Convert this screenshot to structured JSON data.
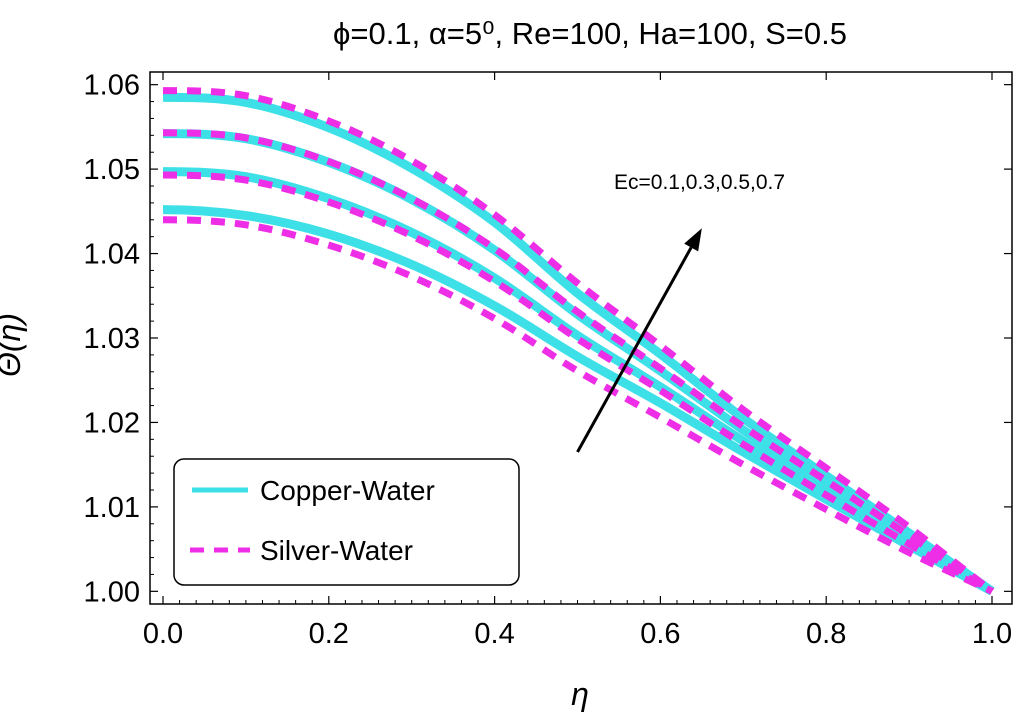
{
  "chart_data": {
    "type": "line",
    "title": "ϕ=0.1, α=5⁰, Re=100, Ha=100, S=0.5",
    "xlabel": "η",
    "ylabel": "Θ(η)",
    "xlim": [
      0.0,
      1.0
    ],
    "ylim": [
      0.9985,
      1.0615
    ],
    "xticks": [
      "0.0",
      "0.2",
      "0.4",
      "0.6",
      "0.8",
      "1.0"
    ],
    "xtick_values": [
      0.0,
      0.2,
      0.4,
      0.6,
      0.8,
      1.0
    ],
    "yticks": [
      "1.00",
      "1.01",
      "1.02",
      "1.03",
      "1.04",
      "1.05",
      "1.06"
    ],
    "ytick_values": [
      1.0,
      1.01,
      1.02,
      1.03,
      1.04,
      1.05,
      1.06
    ],
    "grid": false,
    "legend_position": "bottom-left",
    "legend": [
      {
        "label": "Copper-Water",
        "color": "#3ee0e8",
        "style": "solid"
      },
      {
        "label": "Silver-Water",
        "color": "#ee2ee6",
        "style": "dashed"
      }
    ],
    "annotation": {
      "text": "Ec=0.1,0.3,0.5,0.7",
      "arrow_from": [
        0.5,
        1.0165
      ],
      "arrow_to": [
        0.65,
        1.043
      ]
    },
    "x": [
      0.0,
      0.1,
      0.2,
      0.3,
      0.4,
      0.5,
      0.6,
      0.7,
      0.8,
      0.9,
      1.0
    ],
    "series": [
      {
        "name": "Copper-Water Ec=0.1",
        "group": "Copper-Water",
        "Ec": 0.1,
        "values": [
          1.0452,
          1.0445,
          1.0423,
          1.0387,
          1.0338,
          1.0278,
          1.0223,
          1.0165,
          1.0109,
          1.0054,
          1.0
        ]
      },
      {
        "name": "Copper-Water Ec=0.3",
        "group": "Copper-Water",
        "Ec": 0.3,
        "values": [
          1.0497,
          1.0491,
          1.0465,
          1.0425,
          1.0371,
          1.0303,
          1.0242,
          1.0178,
          1.0118,
          1.0059,
          1.0
        ]
      },
      {
        "name": "Copper-Water Ec=0.5",
        "group": "Copper-Water",
        "Ec": 0.5,
        "values": [
          1.0542,
          1.0536,
          1.0508,
          1.0464,
          1.0404,
          1.0328,
          1.0261,
          1.0191,
          1.0127,
          1.0064,
          1.0
        ]
      },
      {
        "name": "Copper-Water Ec=0.7",
        "group": "Copper-Water",
        "Ec": 0.7,
        "values": [
          1.0585,
          1.0579,
          1.0549,
          1.0501,
          1.0437,
          1.0353,
          1.0281,
          1.0205,
          1.0137,
          1.0069,
          1.0
        ]
      },
      {
        "name": "Silver-Water Ec=0.1",
        "group": "Silver-Water",
        "Ec": 0.1,
        "values": [
          1.044,
          1.0434,
          1.041,
          1.0373,
          1.0323,
          1.0261,
          1.0206,
          1.015,
          1.0097,
          1.0046,
          1.0
        ]
      },
      {
        "name": "Silver-Water Ec=0.3",
        "group": "Silver-Water",
        "Ec": 0.3,
        "values": [
          1.0493,
          1.0487,
          1.0461,
          1.0421,
          1.0367,
          1.0299,
          1.0238,
          1.0174,
          1.0114,
          1.0056,
          1.0
        ]
      },
      {
        "name": "Silver-Water Ec=0.5",
        "group": "Silver-Water",
        "Ec": 0.5,
        "values": [
          1.0543,
          1.0537,
          1.0509,
          1.0465,
          1.0406,
          1.0331,
          1.0264,
          1.0195,
          1.0131,
          1.0066,
          1.0
        ]
      },
      {
        "name": "Silver-Water Ec=0.7",
        "group": "Silver-Water",
        "Ec": 0.7,
        "values": [
          1.0593,
          1.0587,
          1.0557,
          1.051,
          1.0446,
          1.0365,
          1.0291,
          1.0215,
          1.0146,
          1.0076,
          1.0
        ]
      }
    ]
  }
}
